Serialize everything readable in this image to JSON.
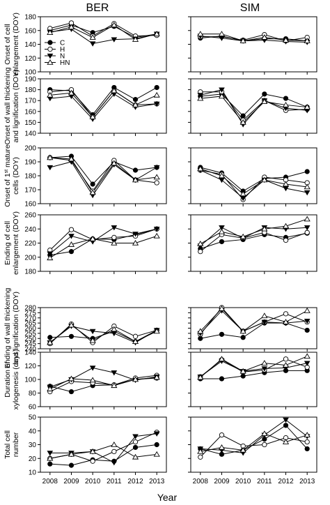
{
  "figure": {
    "columns": [
      "BER",
      "SIM"
    ],
    "x_title": "Year",
    "years": [
      "2008",
      "2009",
      "2010",
      "2011",
      "2012",
      "2013"
    ]
  },
  "legend": [
    {
      "name": "C",
      "marker": "filled-circle"
    },
    {
      "name": "H",
      "marker": "open-circle"
    },
    {
      "name": "N",
      "marker": "filled-triangle-down"
    },
    {
      "name": "HN",
      "marker": "open-triangle-up"
    }
  ],
  "chart_data": [
    {
      "type": "line",
      "ylabel_lines": [
        "Onset of cell",
        "enlargement (DOY)"
      ],
      "ylim": [
        100,
        180
      ],
      "yticks": [
        100,
        120,
        140,
        160,
        180
      ],
      "x": [
        2008,
        2009,
        2010,
        2011,
        2012,
        2013
      ],
      "panels": {
        "BER": [
          {
            "name": "C",
            "values": [
              160,
              168,
              157,
              166,
              150,
              155
            ]
          },
          {
            "name": "H",
            "values": [
              163,
              171,
              152,
              170,
              152,
              153
            ]
          },
          {
            "name": "N",
            "values": [
              158,
              162,
              141,
              147,
              148,
              155
            ]
          },
          {
            "name": "HN",
            "values": [
              157,
              165,
              150,
              168,
              147,
              155
            ]
          }
        ],
        "SIM": [
          {
            "name": "C",
            "values": [
              149,
              152,
              145,
              148,
              148,
              145
            ]
          },
          {
            "name": "H",
            "values": [
              151,
              151,
              146,
              154,
              145,
              150
            ]
          },
          {
            "name": "N",
            "values": [
              152,
              149,
              145,
              146,
              144,
              143
            ]
          },
          {
            "name": "HN",
            "values": [
              155,
              155,
              145,
              150,
              146,
              145
            ]
          }
        ]
      }
    },
    {
      "type": "line",
      "ylabel_lines": [
        "Onset of wall thickening",
        "and lignification (DOY)"
      ],
      "ylim": [
        140,
        190
      ],
      "yticks": [
        140,
        150,
        160,
        170,
        180,
        190
      ],
      "x": [
        2008,
        2009,
        2010,
        2011,
        2012,
        2013
      ],
      "panels": {
        "BER": [
          {
            "name": "C",
            "values": [
              180,
              179,
              157,
              182,
              171,
              182
            ]
          },
          {
            "name": "H",
            "values": [
              178,
              180,
              155,
              179,
              166,
              167
            ]
          },
          {
            "name": "N",
            "values": [
              172,
              174,
              153,
              176,
              164,
              167
            ]
          },
          {
            "name": "HN",
            "values": [
              175,
              177,
              155,
              179,
              166,
              175
            ]
          }
        ],
        "SIM": [
          {
            "name": "C",
            "values": [
              174,
              176,
              156,
              176,
              172,
              164
            ]
          },
          {
            "name": "H",
            "values": [
              178,
              178,
              152,
              170,
              161,
              162
            ]
          },
          {
            "name": "N",
            "values": [
              175,
              180,
              148,
              170,
              163,
              161
            ]
          },
          {
            "name": "HN",
            "values": [
              172,
              174,
              150,
              169,
              166,
              164
            ]
          }
        ]
      }
    },
    {
      "type": "line",
      "ylabel_lines": [
        "Onset of 1st mature",
        "cells (DOY)"
      ],
      "ylim": [
        160,
        200
      ],
      "yticks": [
        160,
        170,
        180,
        190,
        200
      ],
      "x": [
        2008,
        2009,
        2010,
        2011,
        2012,
        2013
      ],
      "panels": {
        "BER": [
          {
            "name": "C",
            "values": [
              193,
              194,
              174,
              190,
              184,
              186
            ]
          },
          {
            "name": "H",
            "values": [
              193,
              191,
              169,
              191,
              177,
              175
            ]
          },
          {
            "name": "N",
            "values": [
              186,
              190,
              166,
              188,
              177,
              186
            ]
          },
          {
            "name": "HN",
            "values": [
              193,
              192,
              168,
              189,
              177,
              179
            ]
          }
        ],
        "SIM": [
          {
            "name": "C",
            "values": [
              186,
              182,
              169,
              178,
              179,
              183
            ]
          },
          {
            "name": "H",
            "values": [
              184,
              181,
              163,
              179,
              177,
              175
            ]
          },
          {
            "name": "N",
            "values": [
              184,
              177,
              164,
              177,
              171,
              168
            ]
          },
          {
            "name": "HN",
            "values": [
              185,
              180,
              167,
              177,
              174,
              172
            ]
          }
        ]
      }
    },
    {
      "type": "line",
      "ylabel_lines": [
        "Ending of cell",
        "enlargement (DOY)"
      ],
      "ylim": [
        180,
        260
      ],
      "yticks": [
        180,
        200,
        220,
        240,
        260
      ],
      "x": [
        2008,
        2009,
        2010,
        2011,
        2012,
        2013
      ],
      "panels": {
        "BER": [
          {
            "name": "C",
            "values": [
              203,
              208,
              226,
              225,
              232,
              240
            ]
          },
          {
            "name": "H",
            "values": [
              210,
              239,
              225,
              228,
              230,
              240
            ]
          },
          {
            "name": "N",
            "values": [
              205,
              230,
              222,
              242,
              233,
              240
            ]
          },
          {
            "name": "HN",
            "values": [
              199,
              218,
              226,
              220,
              220,
              230
            ]
          }
        ],
        "SIM": [
          {
            "name": "C",
            "values": [
              212,
              222,
              225,
              232,
              228,
              234
            ]
          },
          {
            "name": "H",
            "values": [
              208,
              232,
              227,
              235,
              224,
              235
            ]
          },
          {
            "name": "N",
            "values": [
              216,
              242,
              227,
              242,
              240,
              242
            ]
          },
          {
            "name": "HN",
            "values": [
              219,
              236,
              229,
              240,
              244,
              254
            ]
          }
        ]
      }
    },
    {
      "type": "line",
      "ylabel_lines": [
        "Ending of wall thickening",
        "and lignification (DOY)"
      ],
      "ylim": [
        240,
        280
      ],
      "yticks": [
        240,
        245,
        250,
        255,
        260,
        265,
        270,
        275,
        280
      ],
      "x": [
        2008,
        2009,
        2010,
        2011,
        2012,
        2013
      ],
      "panels": {
        "BER": [
          {
            "name": "C",
            "values": [
              251,
              252,
              250,
              257,
              247,
              258
            ]
          },
          {
            "name": "H",
            "values": [
              245,
              264,
              246,
              262,
              252,
              258
            ]
          },
          {
            "name": "N",
            "values": [
              246,
              262,
              257,
              255,
              246,
              258
            ]
          },
          {
            "name": "HN",
            "values": [
              246,
              263,
              248,
              259,
              247,
              257
            ]
          }
        ],
        "SIM": [
          {
            "name": "C",
            "values": [
              250,
              254,
              251,
              265,
              265,
              258
            ]
          },
          {
            "name": "H",
            "values": [
              254,
              280,
              257,
              266,
              274,
              266
            ]
          },
          {
            "name": "N",
            "values": [
              255,
              277,
              257,
              266,
              265,
              267
            ]
          },
          {
            "name": "HN",
            "values": [
              257,
              279,
              257,
              272,
              266,
              277
            ]
          }
        ]
      }
    },
    {
      "type": "line",
      "ylabel_lines": [
        "Duration of",
        "xylogenesis (days)"
      ],
      "ylim": [
        60,
        140
      ],
      "yticks": [
        60,
        80,
        100,
        120,
        140
      ],
      "x": [
        2008,
        2009,
        2010,
        2011,
        2012,
        2013
      ],
      "panels": {
        "BER": [
          {
            "name": "C",
            "values": [
              90,
              82,
              91,
              92,
              100,
              102
            ]
          },
          {
            "name": "H",
            "values": [
              82,
              97,
              95,
              92,
              102,
              106
            ]
          },
          {
            "name": "N",
            "values": [
              89,
              100,
              117,
              110,
              99,
              104
            ]
          },
          {
            "name": "HN",
            "values": [
              86,
              101,
              99,
              91,
              100,
              103
            ]
          }
        ],
        "SIM": [
          {
            "name": "C",
            "values": [
              101,
              101,
              105,
              110,
              113,
              113
            ]
          },
          {
            "name": "H",
            "values": [
              104,
              129,
              111,
              114,
              130,
              118
            ]
          },
          {
            "name": "N",
            "values": [
              104,
              127,
              112,
              116,
              117,
              124
            ]
          },
          {
            "name": "HN",
            "values": [
              103,
              130,
              112,
              124,
              121,
              134
            ]
          }
        ]
      }
    },
    {
      "type": "line",
      "ylabel_lines": [
        "Total cell",
        "number"
      ],
      "ylim": [
        10,
        50
      ],
      "yticks": [
        10,
        20,
        30,
        40,
        50
      ],
      "x": [
        2008,
        2009,
        2010,
        2011,
        2012,
        2013
      ],
      "panels": {
        "BER": [
          {
            "name": "C",
            "values": [
              16,
              15,
              19,
              18,
              28,
              30
            ]
          },
          {
            "name": "H",
            "values": [
              20,
              23,
              18,
              25,
              32,
              39
            ]
          },
          {
            "name": "N",
            "values": [
              24,
              24,
              25,
              17,
              36,
              38
            ]
          },
          {
            "name": "HN",
            "values": [
              20,
              23,
              25,
              30,
              21,
              23
            ]
          }
        ],
        "SIM": [
          {
            "name": "C",
            "values": [
              27,
              23,
              26,
              34,
              44,
              27
            ]
          },
          {
            "name": "H",
            "values": [
              21,
              37,
              29,
              30,
              35,
              32
            ]
          },
          {
            "name": "N",
            "values": [
              27,
              26,
              24,
              37,
              48,
              36
            ]
          },
          {
            "name": "HN",
            "values": [
              25,
              28,
              26,
              38,
              32,
              37
            ]
          }
        ]
      }
    }
  ]
}
